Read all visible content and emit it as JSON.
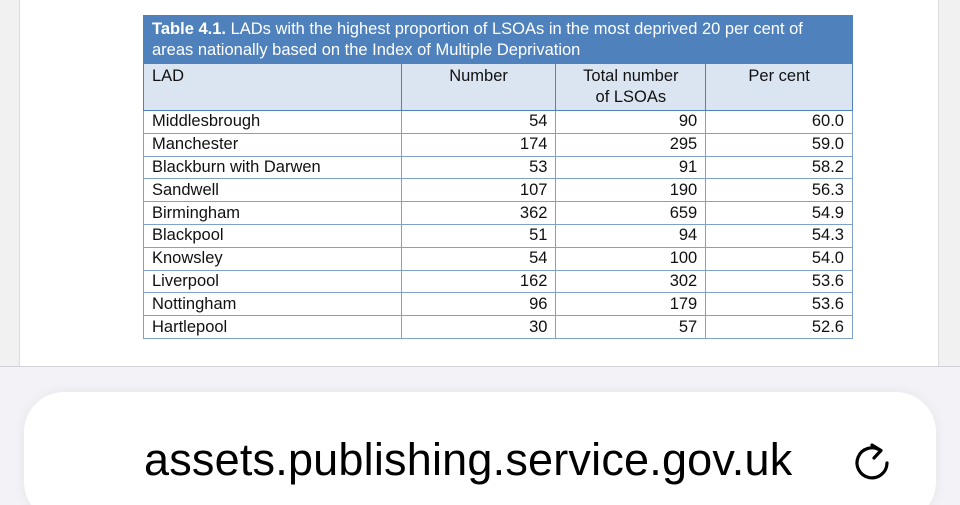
{
  "table": {
    "caption_bold": "Table 4.1.",
    "caption_rest": " LADs with the highest proportion of LSOAs in the most deprived 20 per cent of areas nationally based on the Index of Multiple Deprivation",
    "headers": {
      "lad": "LAD",
      "number": "Number",
      "total_line1": "Total number",
      "total_line2": "of LSOAs",
      "per_cent": "Per cent"
    },
    "rows": [
      {
        "lad": "Middlesbrough",
        "number": "54",
        "total": "90",
        "per_cent": "60.0"
      },
      {
        "lad": "Manchester",
        "number": "174",
        "total": "295",
        "per_cent": "59.0"
      },
      {
        "lad": "Blackburn with Darwen",
        "number": "53",
        "total": "91",
        "per_cent": "58.2"
      },
      {
        "lad": "Sandwell",
        "number": "107",
        "total": "190",
        "per_cent": "56.3"
      },
      {
        "lad": "Birmingham",
        "number": "362",
        "total": "659",
        "per_cent": "54.9"
      },
      {
        "lad": "Blackpool",
        "number": "51",
        "total": "94",
        "per_cent": "54.3"
      },
      {
        "lad": "Knowsley",
        "number": "54",
        "total": "100",
        "per_cent": "54.0"
      },
      {
        "lad": "Liverpool",
        "number": "162",
        "total": "302",
        "per_cent": "53.6"
      },
      {
        "lad": "Nottingham",
        "number": "96",
        "total": "179",
        "per_cent": "53.6"
      },
      {
        "lad": "Hartlepool",
        "number": "30",
        "total": "57",
        "per_cent": "52.6"
      }
    ]
  },
  "address_bar": {
    "url": "assets.publishing.service.gov.uk",
    "reload_icon": "reload-icon"
  },
  "colors": {
    "caption_bg": "#4f81bd",
    "header_bg": "#dbe5f1",
    "cell_border": "#7ea1cf"
  }
}
